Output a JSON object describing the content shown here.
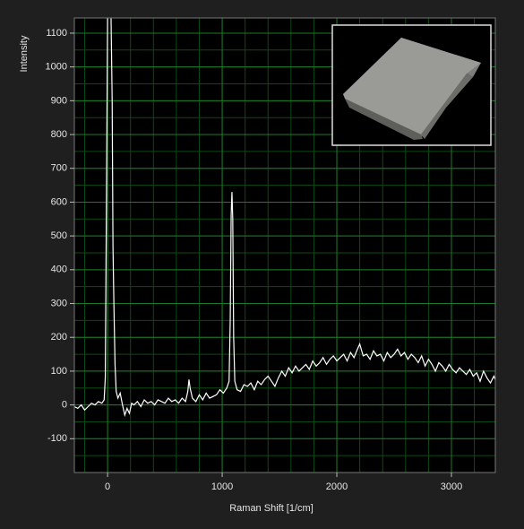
{
  "chart_data": {
    "type": "line",
    "x_label": "Raman Shift  [1/cm]",
    "y_label": "Intensity",
    "color": "#ffffff",
    "grid": true,
    "xlim": [
      -290,
      3383
    ],
    "ylim": [
      -200,
      1145
    ],
    "xticks": [
      0,
      1000,
      2000,
      3000
    ],
    "yticks": [
      -100,
      0,
      100,
      200,
      300,
      400,
      500,
      600,
      700,
      800,
      900,
      1000,
      1100
    ],
    "x": [
      -290,
      -260,
      -230,
      -200,
      -170,
      -140,
      -110,
      -80,
      -50,
      -30,
      -20,
      -10,
      0,
      10,
      20,
      30,
      40,
      47,
      55,
      65,
      75,
      90,
      110,
      130,
      150,
      170,
      190,
      210,
      230,
      260,
      290,
      320,
      350,
      380,
      410,
      440,
      470,
      500,
      530,
      560,
      590,
      620,
      650,
      680,
      700,
      710,
      720,
      740,
      770,
      800,
      830,
      860,
      890,
      920,
      950,
      980,
      1010,
      1040,
      1060,
      1070,
      1078,
      1085,
      1092,
      1100,
      1110,
      1130,
      1160,
      1190,
      1220,
      1250,
      1280,
      1310,
      1340,
      1370,
      1400,
      1430,
      1460,
      1490,
      1520,
      1550,
      1580,
      1610,
      1640,
      1670,
      1700,
      1730,
      1760,
      1790,
      1820,
      1850,
      1880,
      1910,
      1940,
      1970,
      2000,
      2030,
      2060,
      2090,
      2120,
      2150,
      2180,
      2200,
      2230,
      2260,
      2290,
      2320,
      2350,
      2380,
      2410,
      2440,
      2470,
      2500,
      2530,
      2560,
      2590,
      2620,
      2650,
      2680,
      2710,
      2740,
      2770,
      2800,
      2830,
      2860,
      2890,
      2920,
      2950,
      2980,
      3010,
      3040,
      3070,
      3100,
      3130,
      3160,
      3190,
      3220,
      3250,
      3280,
      3310,
      3340,
      3370,
      3383
    ],
    "values": [
      -5,
      -10,
      0,
      -15,
      -5,
      5,
      0,
      10,
      5,
      15,
      80,
      600,
      1150,
      1150,
      1150,
      1150,
      900,
      470,
      300,
      120,
      40,
      20,
      35,
      0,
      -30,
      -10,
      -25,
      5,
      0,
      10,
      -5,
      15,
      5,
      10,
      0,
      15,
      10,
      5,
      20,
      10,
      15,
      5,
      20,
      10,
      40,
      75,
      50,
      20,
      10,
      30,
      15,
      35,
      20,
      25,
      30,
      45,
      35,
      50,
      70,
      250,
      560,
      630,
      550,
      200,
      70,
      45,
      40,
      60,
      55,
      65,
      45,
      70,
      60,
      75,
      85,
      70,
      55,
      80,
      100,
      85,
      110,
      95,
      115,
      100,
      110,
      120,
      105,
      130,
      115,
      125,
      140,
      120,
      135,
      145,
      130,
      140,
      150,
      130,
      155,
      140,
      165,
      180,
      145,
      150,
      135,
      160,
      145,
      150,
      130,
      155,
      140,
      150,
      165,
      145,
      155,
      135,
      150,
      140,
      125,
      145,
      115,
      135,
      120,
      100,
      125,
      115,
      100,
      120,
      105,
      95,
      110,
      100,
      90,
      105,
      85,
      95,
      70,
      100,
      80,
      65,
      85,
      75
    ]
  }
}
